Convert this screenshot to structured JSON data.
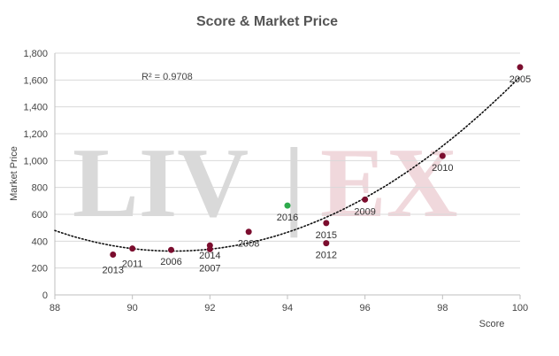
{
  "chart_data": {
    "type": "scatter",
    "title": "Score & Market Price",
    "xlabel": "Score",
    "ylabel": "Market Price",
    "xlim": [
      88,
      100
    ],
    "ylim": [
      0,
      1800
    ],
    "xticks": [
      88,
      90,
      92,
      94,
      96,
      98,
      100
    ],
    "yticks": [
      0,
      200,
      400,
      600,
      800,
      1000,
      1200,
      1400,
      1600,
      1800
    ],
    "grid": "horizontal",
    "points": [
      {
        "label": "2013",
        "x": 89.5,
        "y": 300,
        "color": "#7b0d2e"
      },
      {
        "label": "2011",
        "x": 90,
        "y": 345,
        "color": "#7b0d2e"
      },
      {
        "label": "2006",
        "x": 91,
        "y": 335,
        "color": "#7b0d2e"
      },
      {
        "label": "2014",
        "x": 92,
        "y": 368,
        "color": "#7b0d2e"
      },
      {
        "label": "2007",
        "x": 92,
        "y": 340,
        "color": "#7b0d2e"
      },
      {
        "label": "2008",
        "x": 93,
        "y": 470,
        "color": "#7b0d2e"
      },
      {
        "label": "2016",
        "x": 94,
        "y": 665,
        "color": "#2eaa4c"
      },
      {
        "label": "2015",
        "x": 95,
        "y": 535,
        "color": "#7b0d2e"
      },
      {
        "label": "2012",
        "x": 95,
        "y": 385,
        "color": "#7b0d2e"
      },
      {
        "label": "2009",
        "x": 96,
        "y": 710,
        "color": "#7b0d2e"
      },
      {
        "label": "2010",
        "x": 98,
        "y": 1035,
        "color": "#7b0d2e"
      },
      {
        "label": "2005",
        "x": 100,
        "y": 1695,
        "color": "#7b0d2e"
      }
    ],
    "trendline": {
      "type": "polynomial",
      "style": "dotted",
      "r_squared_text": "R² = 0.9708"
    },
    "watermark": {
      "left_text": "LIV",
      "separator": "|",
      "right_text": "EX",
      "left_color": "#d9d9d9",
      "right_color": "#f0d8dc"
    }
  }
}
